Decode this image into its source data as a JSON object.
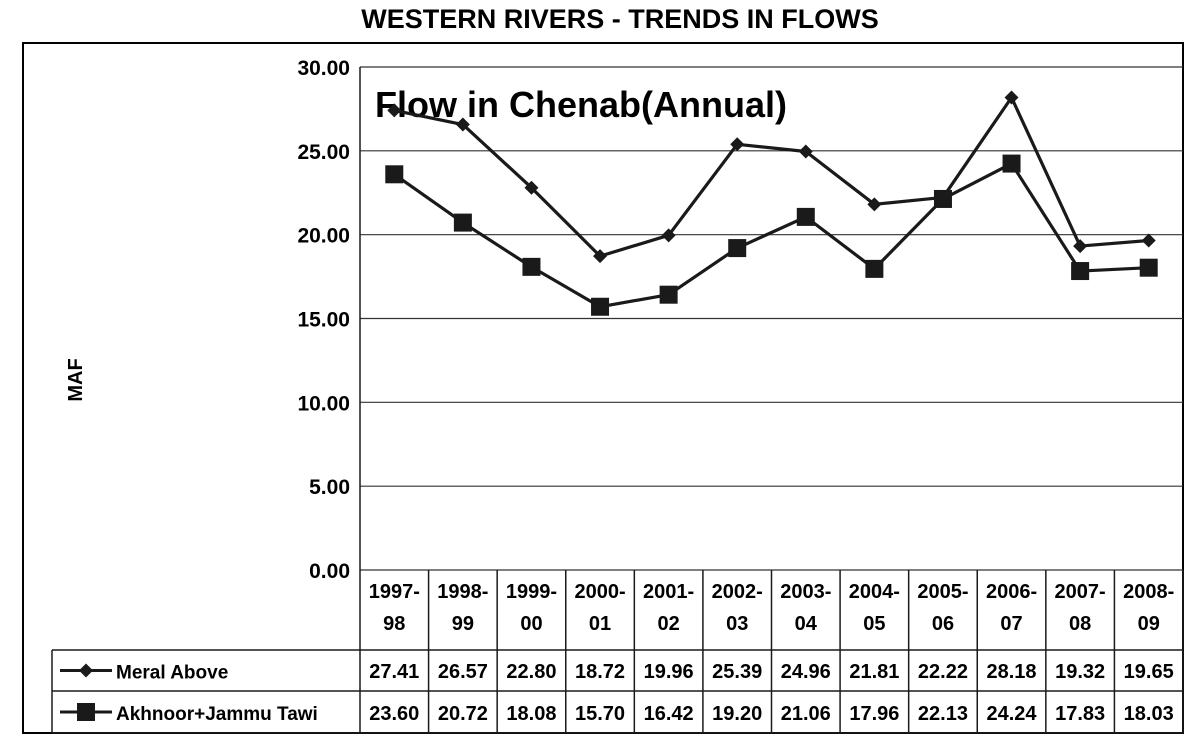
{
  "header": {
    "title": "WESTERN RIVERS - TRENDS IN FLOWS"
  },
  "chart_data": {
    "type": "line",
    "title": "Flow in Chenab(Annual)",
    "ylabel": "MAF",
    "xlabel": "",
    "ylim": [
      0,
      30
    ],
    "yticks": [
      "0.00",
      "5.00",
      "10.00",
      "15.00",
      "20.00",
      "25.00",
      "30.00"
    ],
    "categories": [
      [
        "1997-",
        "98"
      ],
      [
        "1998-",
        "99"
      ],
      [
        "1999-",
        "00"
      ],
      [
        "2000-",
        "01"
      ],
      [
        "2001-",
        "02"
      ],
      [
        "2002-",
        "03"
      ],
      [
        "2003-",
        "04"
      ],
      [
        "2004-",
        "05"
      ],
      [
        "2005-",
        "06"
      ],
      [
        "2006-",
        "07"
      ],
      [
        "2007-",
        "08"
      ],
      [
        "2008-",
        "09"
      ]
    ],
    "grid": true,
    "legend": "data-table",
    "series": [
      {
        "name": "Meral Above",
        "marker": "diamond",
        "values": [
          27.41,
          26.57,
          22.8,
          18.72,
          19.96,
          25.39,
          24.96,
          21.81,
          22.22,
          28.18,
          19.32,
          19.65
        ],
        "labels": [
          "27.41",
          "26.57",
          "22.80",
          "18.72",
          "19.96",
          "25.39",
          "24.96",
          "21.81",
          "22.22",
          "28.18",
          "19.32",
          "19.65"
        ]
      },
      {
        "name": "Akhnoor+Jammu Tawi",
        "marker": "square",
        "values": [
          23.6,
          20.72,
          18.08,
          15.7,
          16.42,
          19.2,
          21.06,
          17.96,
          22.13,
          24.24,
          17.83,
          18.03
        ],
        "labels": [
          "23.60",
          "20.72",
          "18.08",
          "15.70",
          "16.42",
          "19.20",
          "21.06",
          "17.96",
          "22.13",
          "24.24",
          "17.83",
          "18.03"
        ]
      }
    ],
    "colors": {
      "line": "#1a1a1a",
      "grid": "#333333"
    }
  }
}
